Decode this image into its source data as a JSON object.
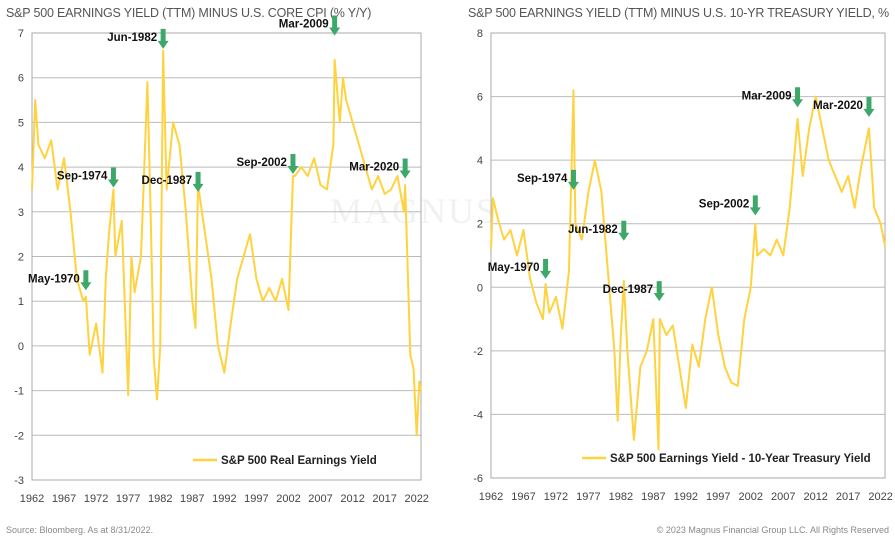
{
  "footer": {
    "source": "Source: Bloomberg. As at 8/31/2022.",
    "copyright": "© 2023 Magnus Financial Group LLC. All Rights Reserved"
  },
  "watermark": "MAGNUS FINANCIAL G",
  "colors": {
    "series": "#FFD23F",
    "arrow": "#3DA86A",
    "grid": "#BBBBBB"
  },
  "chart_data": [
    {
      "type": "line",
      "title": "S&P 500 EARNINGS YIELD (TTM) MINUS U.S. CORE CPI (% Y/Y)",
      "ylim": [
        -3,
        7
      ],
      "yticks": [
        -3,
        -2,
        -1,
        0,
        1,
        2,
        3,
        4,
        5,
        6,
        7
      ],
      "xlim": [
        1962,
        2022.67
      ],
      "xticks": [
        1962,
        1967,
        1972,
        1977,
        1982,
        1987,
        1992,
        1997,
        2002,
        2007,
        2012,
        2017,
        2022
      ],
      "grid": true,
      "legend": "bottom-right",
      "series": [
        {
          "name": "S&P 500 Real Earnings Yield",
          "x": [
            1962,
            1962.5,
            1963,
            1964,
            1965,
            1966,
            1967,
            1968,
            1969,
            1970,
            1970.4,
            1971,
            1972,
            1973,
            1973.5,
            1974,
            1974.7,
            1975,
            1976,
            1977,
            1977.5,
            1978,
            1979,
            1980,
            1980.5,
            1981,
            1981.5,
            1982,
            1982.45,
            1983,
            1984,
            1985,
            1986,
            1987,
            1987.5,
            1987.9,
            1988,
            1989,
            1990,
            1991,
            1992,
            1993,
            1994,
            1995,
            1996,
            1997,
            1998,
            1999,
            2000,
            2001,
            2002,
            2002.7,
            2003,
            2004,
            2005,
            2006,
            2007,
            2008,
            2009,
            2009.2,
            2010,
            2010.5,
            2011,
            2012,
            2013,
            2014,
            2015,
            2016,
            2017,
            2018,
            2019,
            2020,
            2020.2,
            2021,
            2021.5,
            2022,
            2022.4,
            2022.67
          ],
          "y": [
            3.5,
            5.5,
            4.5,
            4.2,
            4.6,
            3.5,
            4.2,
            3.0,
            1.5,
            1.0,
            1.1,
            -0.2,
            0.5,
            -0.6,
            1.5,
            2.5,
            3.5,
            2.0,
            2.8,
            -1.1,
            2.0,
            1.2,
            2.0,
            5.9,
            3.0,
            -0.3,
            -1.2,
            0.0,
            6.6,
            3.5,
            5.0,
            4.5,
            3.0,
            1.0,
            0.4,
            3.7,
            3.5,
            2.5,
            1.5,
            0.0,
            -0.6,
            0.5,
            1.5,
            2.0,
            2.5,
            1.5,
            1.0,
            1.3,
            1.0,
            1.5,
            0.8,
            3.8,
            3.8,
            4.0,
            3.8,
            4.2,
            3.6,
            3.5,
            4.5,
            6.4,
            5.0,
            6.0,
            5.5,
            5.0,
            4.5,
            4.0,
            3.5,
            3.8,
            3.4,
            3.5,
            3.8,
            3.0,
            3.6,
            -0.2,
            -0.5,
            -2.0,
            -0.8,
            -1.0
          ]
        }
      ],
      "annotations": [
        {
          "label": "May-1970",
          "x": 1970.4,
          "y": 1.2
        },
        {
          "label": "Sep-1974",
          "x": 1974.7,
          "y": 3.5
        },
        {
          "label": "Jun-1982",
          "x": 1982.45,
          "y": 6.6
        },
        {
          "label": "Dec-1987",
          "x": 1987.9,
          "y": 3.4
        },
        {
          "label": "Sep-2002",
          "x": 2002.7,
          "y": 3.8
        },
        {
          "label": "Mar-2009",
          "x": 2009.2,
          "y": 6.9
        },
        {
          "label": "Mar-2020",
          "x": 2020.2,
          "y": 3.7
        }
      ]
    },
    {
      "type": "line",
      "title": "S&P 500 EARNINGS YIELD (TTM) MINUS U.S. 10-YR TREASURY YIELD, %",
      "ylim": [
        -6,
        8
      ],
      "yticks": [
        -6,
        -4,
        -2,
        0,
        2,
        4,
        6,
        8
      ],
      "xlim": [
        1962,
        2022.67
      ],
      "xticks": [
        1962,
        1967,
        1972,
        1977,
        1982,
        1987,
        1992,
        1997,
        2002,
        2007,
        2012,
        2017,
        2022
      ],
      "grid": true,
      "legend": "bottom-right",
      "series": [
        {
          "name": "S&P 500 Earnings Yield - 10-Year Treasury Yield",
          "x": [
            1962,
            1962.3,
            1963,
            1964,
            1965,
            1966,
            1967,
            1968,
            1969,
            1970,
            1970.4,
            1971,
            1972,
            1973,
            1974,
            1974.7,
            1975,
            1976,
            1977,
            1978,
            1979,
            1980,
            1981,
            1981.5,
            1982,
            1982.45,
            1983,
            1984,
            1985,
            1986,
            1987,
            1987.8,
            1988,
            1989,
            1990,
            1991,
            1992,
            1993,
            1994,
            1995,
            1996,
            1997,
            1998,
            1999,
            2000,
            2001,
            2002,
            2002.7,
            2003,
            2004,
            2005,
            2006,
            2007,
            2008,
            2009.2,
            2010,
            2011,
            2012,
            2013,
            2014,
            2015,
            2016,
            2017,
            2018,
            2019,
            2020.2,
            2021,
            2022,
            2022.67
          ],
          "y": [
            1.2,
            2.8,
            2.2,
            1.5,
            1.8,
            1.0,
            1.8,
            0.3,
            -0.5,
            -1.0,
            0.1,
            -0.8,
            -0.3,
            -1.3,
            0.5,
            6.2,
            2.0,
            1.5,
            3.0,
            4.0,
            3.0,
            0.5,
            -2.0,
            -4.2,
            -1.5,
            0.2,
            -2.0,
            -4.8,
            -2.5,
            -2.0,
            -1.0,
            -5.1,
            -1.0,
            -1.5,
            -1.2,
            -2.5,
            -3.8,
            -1.8,
            -2.5,
            -1.0,
            0.0,
            -1.5,
            -2.5,
            -3.0,
            -3.1,
            -1.0,
            0.0,
            2.0,
            1.0,
            1.2,
            1.0,
            1.5,
            1.0,
            2.5,
            5.3,
            3.5,
            5.0,
            6.0,
            5.0,
            4.0,
            3.5,
            3.0,
            3.5,
            2.5,
            3.8,
            5.0,
            2.5,
            2.0,
            1.3
          ]
        }
      ],
      "annotations": [
        {
          "label": "May-1970",
          "x": 1970.4,
          "y": 0.2
        },
        {
          "label": "Sep-1974",
          "x": 1974.7,
          "y": 3.0
        },
        {
          "label": "Jun-1982",
          "x": 1982.45,
          "y": 1.4
        },
        {
          "label": "Dec-1987",
          "x": 1987.9,
          "y": -0.5
        },
        {
          "label": "Sep-2002",
          "x": 2002.7,
          "y": 2.2
        },
        {
          "label": "Mar-2009",
          "x": 2009.2,
          "y": 5.6
        },
        {
          "label": "Mar-2020",
          "x": 2020.2,
          "y": 5.3
        }
      ]
    }
  ]
}
